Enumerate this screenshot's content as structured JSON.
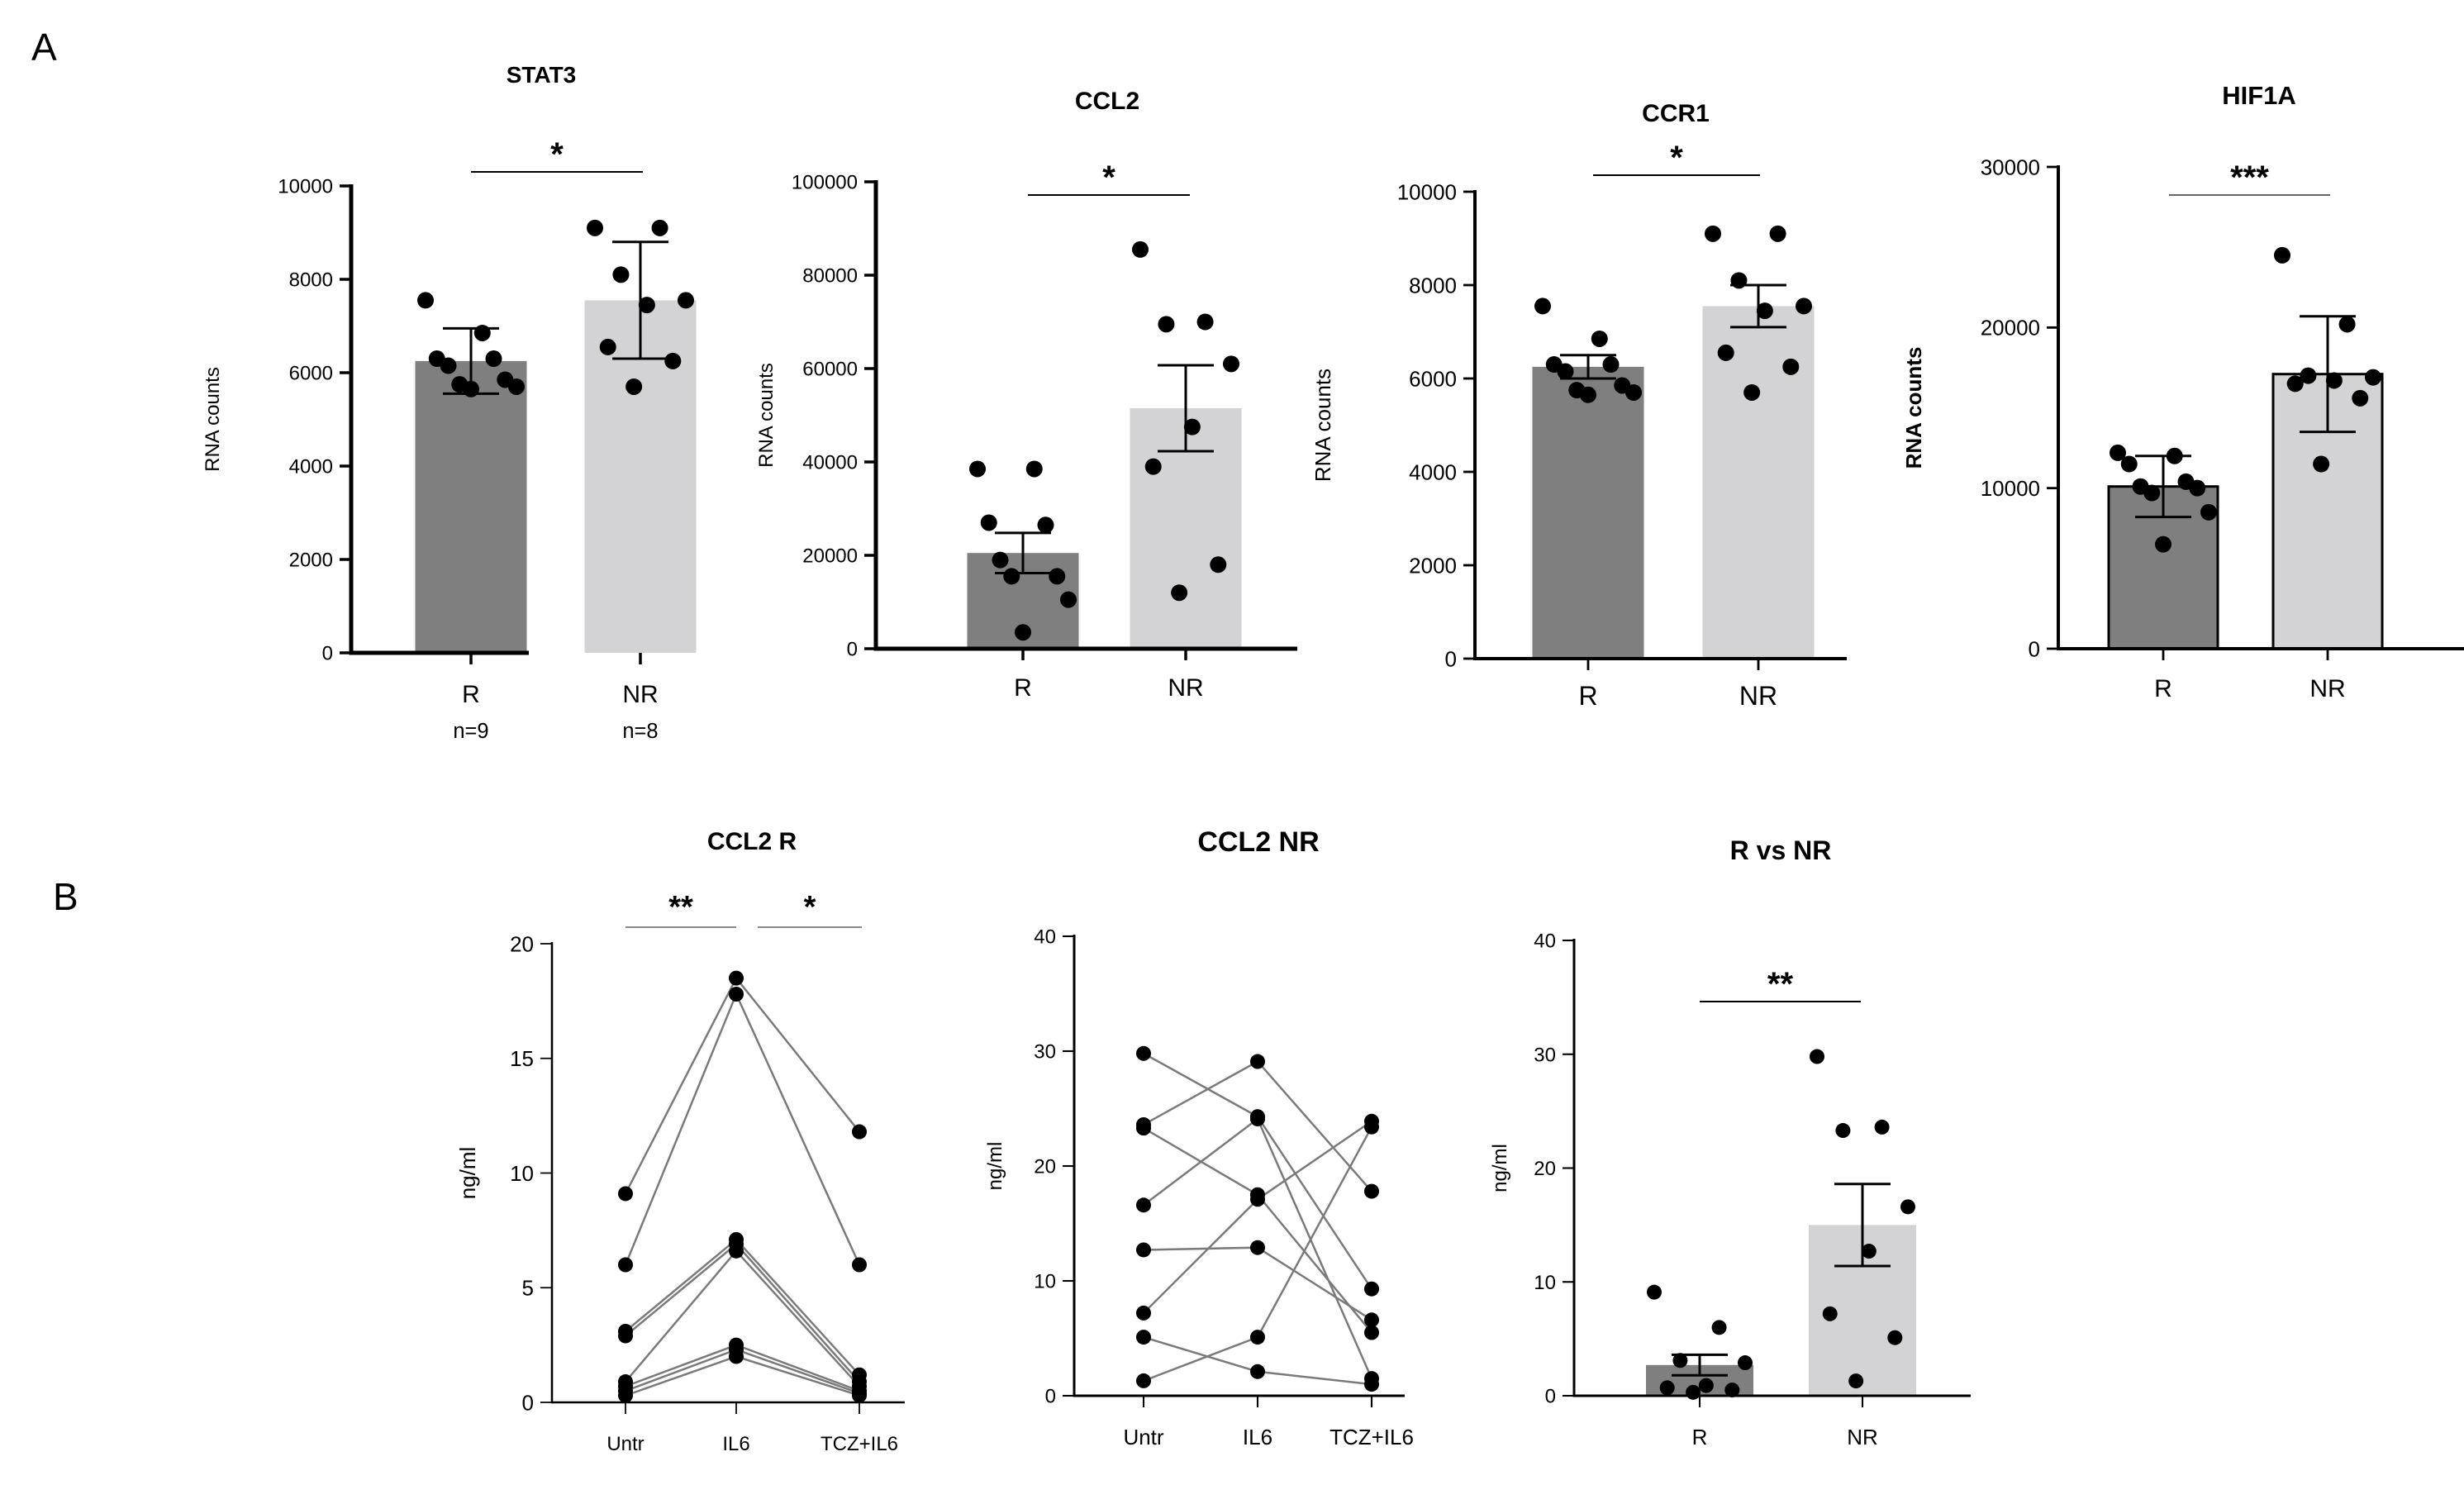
{
  "figure": {
    "panel_labels": [
      "A",
      "B"
    ]
  },
  "colors": {
    "dark_bar": "#7f7f7f",
    "light_bar": "#d3d3d5",
    "line": "#7a7a7a",
    "dot": "#000000"
  },
  "chart_data": [
    {
      "type": "bar",
      "title": "STAT3",
      "ylabel": "RNA counts",
      "xlabel": "",
      "categories": [
        "R",
        "NR"
      ],
      "sample_sizes": [
        "n=9",
        "n=8"
      ],
      "values": [
        6250,
        7550
      ],
      "errors": [
        700,
        1250
      ],
      "ylim": [
        0,
        10000
      ],
      "yticks": [
        0,
        2000,
        4000,
        6000,
        8000,
        10000
      ],
      "points": [
        [
          7550,
          6850,
          6300,
          6300,
          6150,
          5850,
          5750,
          5700,
          5650
        ],
        [
          9100,
          9100,
          8100,
          7550,
          7450,
          6550,
          6250,
          5700
        ]
      ],
      "significance": "*"
    },
    {
      "type": "bar",
      "title": "CCL2",
      "ylabel": "RNA counts",
      "xlabel": "",
      "categories": [
        "R",
        "NR"
      ],
      "values": [
        20500,
        51500
      ],
      "errors": [
        4300,
        9200
      ],
      "ylim": [
        0,
        100000
      ],
      "yticks": [
        0,
        20000,
        40000,
        60000,
        80000,
        100000
      ],
      "points": [
        [
          38500,
          38500,
          27000,
          26500,
          19000,
          15500,
          15500,
          10500,
          3500
        ],
        [
          85500,
          70000,
          69500,
          61000,
          47500,
          39000,
          18000,
          12000
        ]
      ],
      "significance": "*"
    },
    {
      "type": "bar",
      "title": "CCR1",
      "ylabel": "RNA counts",
      "xlabel": "",
      "categories": [
        "R",
        "NR"
      ],
      "values": [
        6250,
        7550
      ],
      "errors": [
        250,
        450
      ],
      "ylim": [
        0,
        10000
      ],
      "yticks": [
        0,
        2000,
        4000,
        6000,
        8000,
        10000
      ],
      "points": [
        [
          7550,
          6850,
          6300,
          6300,
          6150,
          5850,
          5750,
          5700,
          5650
        ],
        [
          9100,
          9100,
          8100,
          7550,
          7450,
          6550,
          6250,
          5700
        ]
      ],
      "significance": "*"
    },
    {
      "type": "bar",
      "title": "HIF1A",
      "ylabel": "RNA counts",
      "xlabel": "",
      "categories": [
        "R",
        "NR"
      ],
      "values": [
        10100,
        17100
      ],
      "errors": [
        1900,
        3600
      ],
      "ylim": [
        0,
        30000
      ],
      "yticks": [
        0,
        10000,
        20000,
        30000
      ],
      "points": [
        [
          12200,
          12000,
          11500,
          10400,
          10100,
          10000,
          9700,
          8500,
          6500
        ],
        [
          24500,
          20200,
          17000,
          16900,
          16700,
          16500,
          15600,
          11500
        ]
      ],
      "significance": "***"
    },
    {
      "type": "line",
      "title": "CCL2 R",
      "ylabel": "ng/ml",
      "xlabel": "",
      "categories": [
        "Untr",
        "IL6",
        "TCZ+IL6"
      ],
      "ylim": [
        0,
        20
      ],
      "yticks": [
        0,
        5,
        10,
        15,
        20
      ],
      "series": [
        {
          "values": [
            9.1,
            18.5,
            11.8
          ]
        },
        {
          "values": [
            6.0,
            17.8,
            6.0
          ]
        },
        {
          "values": [
            3.1,
            7.1,
            1.2
          ]
        },
        {
          "values": [
            2.9,
            6.9,
            0.9
          ]
        },
        {
          "values": [
            0.9,
            6.6,
            0.7
          ]
        },
        {
          "values": [
            0.7,
            2.5,
            0.5
          ]
        },
        {
          "values": [
            0.5,
            2.3,
            0.4
          ]
        },
        {
          "values": [
            0.3,
            2.0,
            0.3
          ]
        }
      ],
      "significance": [
        {
          "between": [
            "Untr",
            "IL6"
          ],
          "label": "**"
        },
        {
          "between": [
            "IL6",
            "TCZ+IL6"
          ],
          "label": "*"
        }
      ]
    },
    {
      "type": "line",
      "title": "CCL2 NR",
      "ylabel": "ng/ml",
      "xlabel": "",
      "categories": [
        "Untr",
        "IL6",
        "TCZ+IL6"
      ],
      "ylim": [
        0,
        40
      ],
      "yticks": [
        0,
        10,
        20,
        30,
        40
      ],
      "series": [
        {
          "values": [
            29.8,
            24.3,
            9.3
          ]
        },
        {
          "values": [
            23.6,
            29.1,
            17.8
          ]
        },
        {
          "values": [
            23.3,
            17.5,
            5.5
          ]
        },
        {
          "values": [
            16.6,
            24.1,
            1.5
          ]
        },
        {
          "values": [
            12.7,
            12.9,
            6.6
          ]
        },
        {
          "values": [
            7.2,
            17.1,
            23.9
          ]
        },
        {
          "values": [
            5.1,
            2.1,
            1.0
          ]
        },
        {
          "values": [
            1.3,
            5.1,
            23.4
          ]
        }
      ]
    },
    {
      "type": "bar",
      "title": "R vs NR",
      "ylabel": "ng/ml",
      "xlabel": "",
      "categories": [
        "R",
        "NR"
      ],
      "values": [
        2.7,
        15.0
      ],
      "errors": [
        0.9,
        3.6
      ],
      "ylim": [
        0,
        40
      ],
      "yticks": [
        0,
        10,
        20,
        30,
        40
      ],
      "points": [
        [
          9.1,
          6.0,
          3.1,
          2.9,
          0.9,
          0.7,
          0.5,
          0.3
        ],
        [
          29.8,
          23.6,
          23.3,
          16.6,
          12.7,
          7.2,
          5.1,
          1.3
        ]
      ],
      "significance": "**"
    }
  ]
}
